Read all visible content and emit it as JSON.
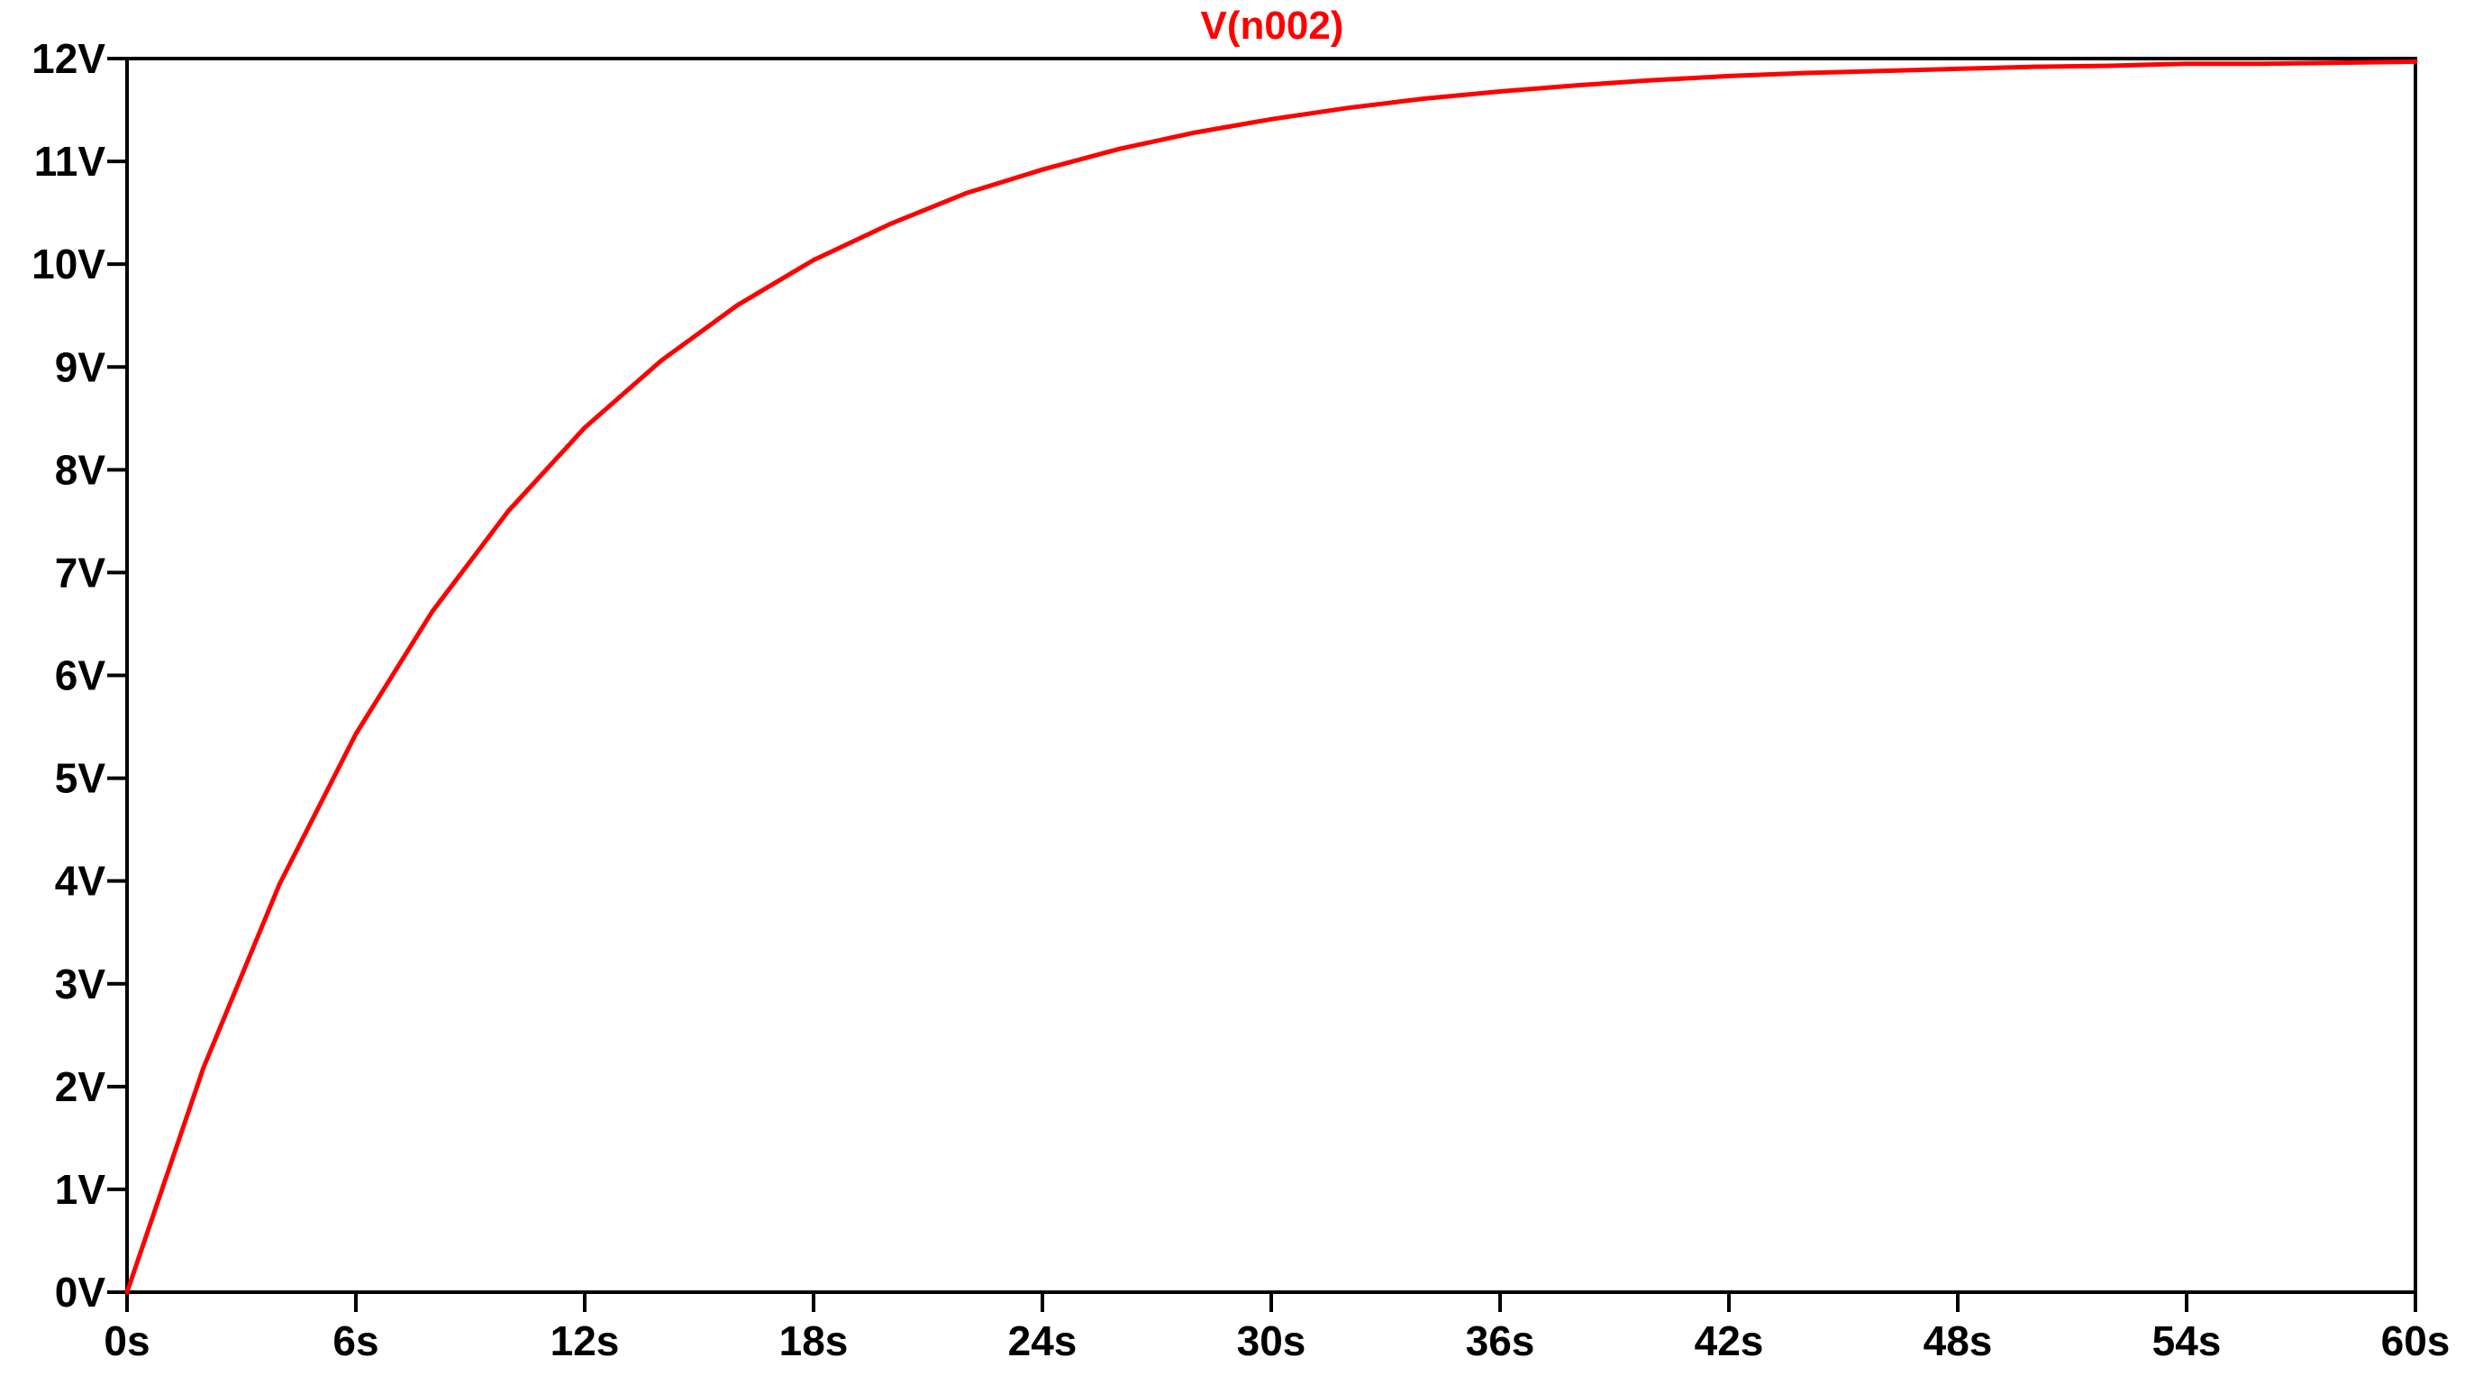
{
  "chart_data": {
    "type": "line",
    "title": "V(n002)",
    "xlabel": "",
    "ylabel": "",
    "xlim": [
      0,
      60
    ],
    "ylim": [
      0,
      12
    ],
    "grid": false,
    "legend": "none",
    "x_ticks": [
      "0s",
      "6s",
      "12s",
      "18s",
      "24s",
      "30s",
      "36s",
      "42s",
      "48s",
      "54s",
      "60s"
    ],
    "y_ticks": [
      "0V",
      "1V",
      "2V",
      "3V",
      "4V",
      "5V",
      "6V",
      "7V",
      "8V",
      "9V",
      "10V",
      "11V",
      "12V"
    ],
    "series": [
      {
        "name": "V(n002)",
        "color": "#ff0000",
        "x": [
          0,
          2,
          4,
          6,
          8,
          10,
          12,
          14,
          16,
          18,
          20,
          22,
          24,
          26,
          28,
          30,
          32,
          34,
          36,
          38,
          40,
          42,
          44,
          46,
          48,
          50,
          52,
          54,
          56,
          58,
          60
        ],
        "y": [
          0.0,
          2.18,
          3.97,
          5.43,
          6.62,
          7.6,
          8.41,
          9.06,
          9.6,
          10.04,
          10.39,
          10.69,
          10.92,
          11.12,
          11.28,
          11.41,
          11.52,
          11.61,
          11.68,
          11.74,
          11.79,
          11.83,
          11.86,
          11.88,
          11.9,
          11.92,
          11.93,
          11.95,
          11.95,
          11.96,
          11.97
        ]
      }
    ]
  },
  "colors": {
    "axis": "#000000",
    "trace": "#ff0000",
    "background": "#ffffff"
  }
}
